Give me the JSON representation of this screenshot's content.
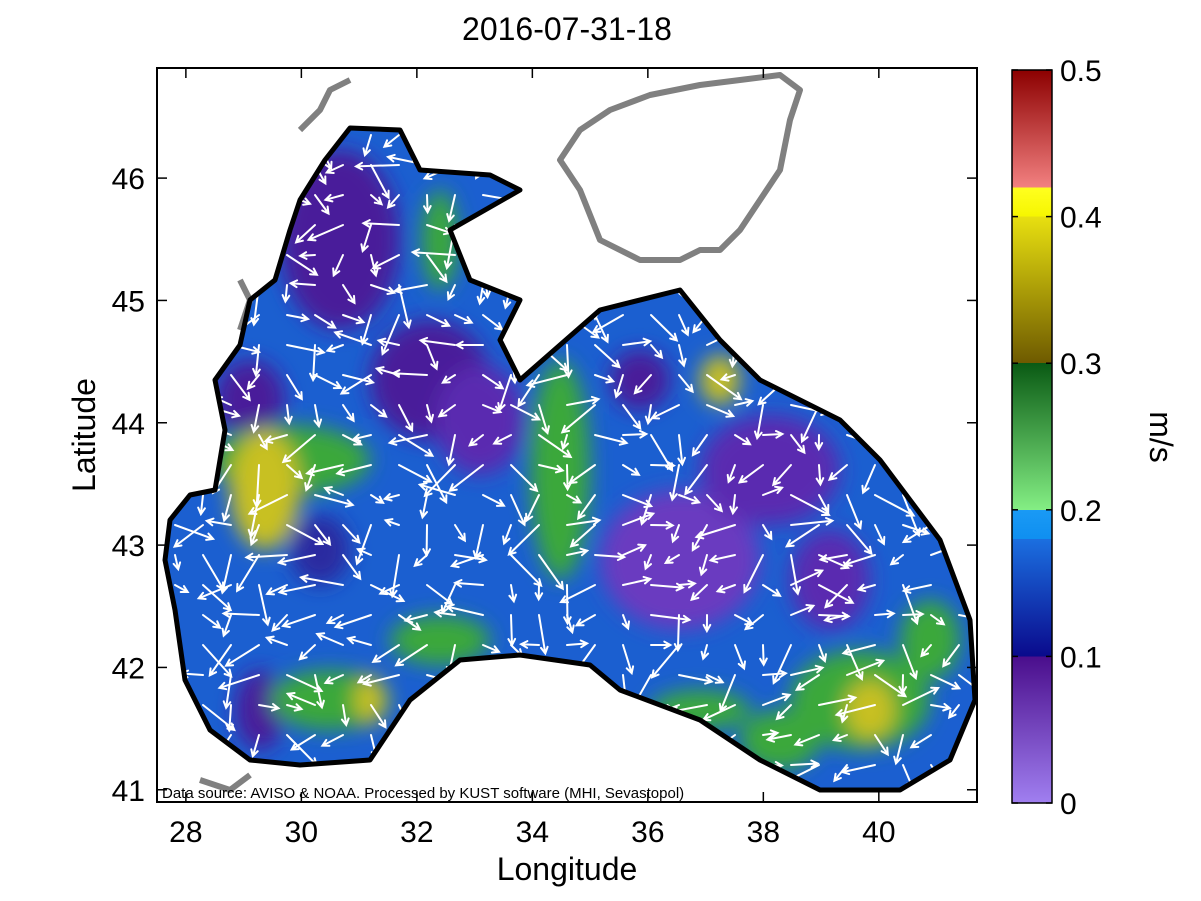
{
  "title": "2016-07-31-18",
  "x_axis": {
    "label": "Longitude",
    "range": [
      27.5,
      41.7
    ],
    "ticks": [
      28,
      30,
      32,
      34,
      36,
      38,
      40
    ],
    "tick_labels": [
      "28",
      "30",
      "32",
      "34",
      "36",
      "38",
      "40"
    ]
  },
  "y_axis": {
    "label": "Latitude",
    "range": [
      40.9,
      46.9
    ],
    "ticks": [
      41,
      42,
      43,
      44,
      45,
      46
    ],
    "tick_labels": [
      "41",
      "42",
      "43",
      "44",
      "45",
      "46"
    ]
  },
  "colorbar": {
    "label": "m/s",
    "range": [
      0,
      0.5
    ],
    "ticks": [
      0,
      0.1,
      0.2,
      0.3,
      0.4,
      0.5
    ],
    "tick_labels": [
      "0",
      "0.1",
      "0.2",
      "0.3",
      "0.4",
      "0.5"
    ],
    "colormap": [
      {
        "from": 0.0,
        "to": 0.1,
        "start": "#a07ff0",
        "end": "#4a0e8c"
      },
      {
        "from": 0.1,
        "to": 0.18,
        "start": "#0a0a8c",
        "end": "#1b6fe0"
      },
      {
        "from": 0.18,
        "to": 0.2,
        "start": "#0f8ff0",
        "end": "#1a9af5"
      },
      {
        "from": 0.2,
        "to": 0.3,
        "start": "#84ee84",
        "end": "#0a5a14"
      },
      {
        "from": 0.3,
        "to": 0.4,
        "start": "#6e5a00",
        "end": "#e8e010"
      },
      {
        "from": 0.4,
        "to": 0.42,
        "start": "#f6f600",
        "end": "#ffff20"
      },
      {
        "from": 0.42,
        "to": 0.5,
        "start": "#f28080",
        "end": "#8c0000"
      }
    ]
  },
  "credit": "Data source: AVISO & NOAA. Processed by KUST software (MHI, Sevastopol)",
  "colors": {
    "sea_low": "#4a1a9a",
    "sea_mid": "#1b5fd0",
    "sea_high": "#3aa83a",
    "sea_peak": "#c8c020",
    "land_outline": "#808080",
    "coast": "#000000",
    "arrows": "#ffffff"
  }
}
